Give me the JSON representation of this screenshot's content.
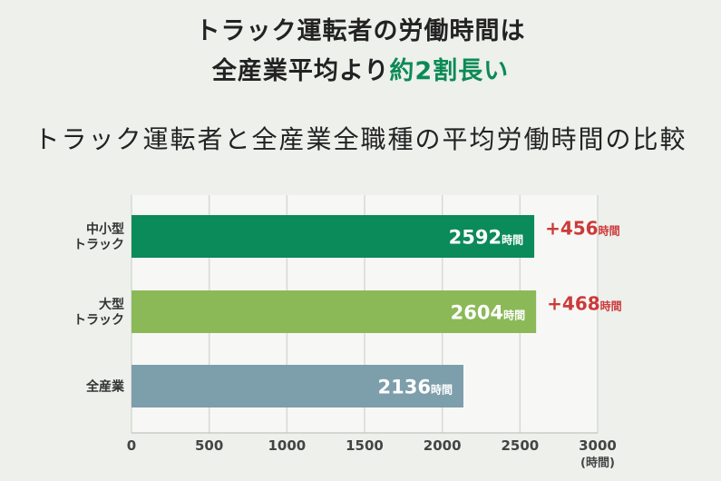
{
  "headline": {
    "line1": "トラック運転者の労働時間は",
    "line2_prefix": "全産業平均より",
    "line2_highlight": "約2割長い"
  },
  "chart_data": {
    "type": "bar",
    "orientation": "horizontal",
    "title": "トラック運転者と全産業全職種の平均労働時間の比較",
    "categories": [
      [
        "中小型",
        "トラック"
      ],
      [
        "大型",
        "トラック"
      ],
      [
        "全産業"
      ]
    ],
    "values": [
      2592,
      2604,
      2136
    ],
    "value_unit": "時間",
    "differences": [
      "+456",
      "+468",
      null
    ],
    "difference_unit": "時間",
    "x_ticks": [
      0,
      500,
      1000,
      1500,
      2000,
      2500,
      3000
    ],
    "xlim": [
      0,
      3000
    ],
    "xlabel": "(時間)",
    "grid": true,
    "colors": {
      "bars": [
        "#0b8a5a",
        "#8bb957",
        "#7d9eab"
      ],
      "highlight": "#0c8a55",
      "difference": "#cc3a3a",
      "grid": "#d6d9d4",
      "background": "#eef0ec"
    }
  }
}
